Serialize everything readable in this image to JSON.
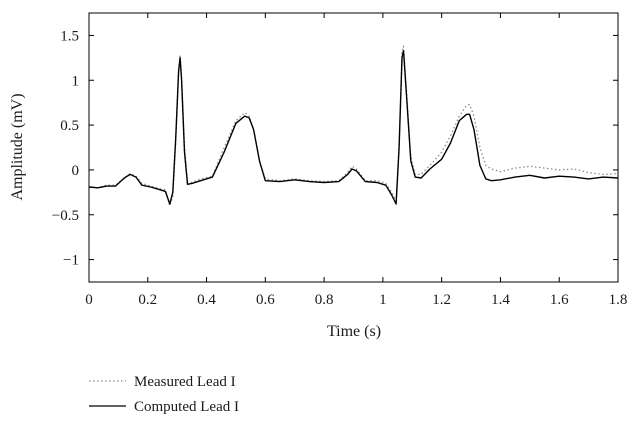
{
  "chart_data": {
    "type": "line",
    "xlabel": "Time (s)",
    "ylabel": "Amplitude (mV)",
    "xlim": [
      0,
      1.8
    ],
    "ylim": [
      -1.25,
      1.75
    ],
    "xticks": [
      0,
      0.2,
      0.4,
      0.6,
      0.8,
      1,
      1.2,
      1.4,
      1.6,
      1.8
    ],
    "xtick_labels": [
      "0",
      "0.2",
      "0.4",
      "0.6",
      "0.8",
      "1",
      "1.2",
      "1.4",
      "1.6",
      "1.8"
    ],
    "yticks": [
      1.5,
      1,
      0.5,
      0,
      -0.5,
      -1
    ],
    "ytick_labels": [
      "1.5",
      "1",
      "0.5",
      "0",
      "−0.5",
      "−1"
    ],
    "grid": false,
    "legend_placement": "bottom-left, below plot",
    "series": [
      {
        "name": "Measured Lead I",
        "style": "dotted",
        "color": "#8c8c8c",
        "x": [
          0,
          0.03,
          0.06,
          0.09,
          0.12,
          0.14,
          0.16,
          0.18,
          0.21,
          0.24,
          0.26,
          0.275,
          0.285,
          0.295,
          0.305,
          0.31,
          0.315,
          0.325,
          0.335,
          0.35,
          0.38,
          0.42,
          0.46,
          0.5,
          0.53,
          0.545,
          0.56,
          0.58,
          0.6,
          0.65,
          0.7,
          0.75,
          0.8,
          0.85,
          0.88,
          0.895,
          0.91,
          0.94,
          0.98,
          1.01,
          1.03,
          1.045,
          1.055,
          1.065,
          1.07,
          1.08,
          1.095,
          1.11,
          1.13,
          1.16,
          1.2,
          1.23,
          1.26,
          1.285,
          1.295,
          1.31,
          1.33,
          1.35,
          1.37,
          1.4,
          1.45,
          1.5,
          1.55,
          1.6,
          1.65,
          1.7,
          1.75,
          1.8
        ],
        "y": [
          -0.19,
          -0.2,
          -0.17,
          -0.17,
          -0.09,
          -0.04,
          -0.07,
          -0.15,
          -0.18,
          -0.21,
          -0.22,
          -0.4,
          -0.3,
          0.3,
          1.1,
          1.28,
          1.05,
          0.25,
          -0.13,
          -0.14,
          -0.1,
          -0.07,
          0.25,
          0.55,
          0.64,
          0.6,
          0.45,
          0.1,
          -0.1,
          -0.12,
          -0.1,
          -0.12,
          -0.13,
          -0.12,
          -0.03,
          0.04,
          0.01,
          -0.12,
          -0.12,
          -0.15,
          -0.25,
          -0.35,
          0.3,
          1.3,
          1.38,
          0.9,
          0.15,
          -0.05,
          -0.05,
          0.05,
          0.2,
          0.38,
          0.6,
          0.72,
          0.73,
          0.6,
          0.25,
          0.05,
          0.01,
          -0.02,
          0.02,
          0.04,
          0.02,
          0.0,
          0.01,
          -0.03,
          -0.05,
          -0.04
        ]
      },
      {
        "name": "Computed Lead I",
        "style": "solid",
        "color": "#000000",
        "x": [
          0,
          0.03,
          0.06,
          0.09,
          0.12,
          0.14,
          0.16,
          0.18,
          0.21,
          0.24,
          0.26,
          0.275,
          0.285,
          0.295,
          0.305,
          0.31,
          0.315,
          0.325,
          0.335,
          0.35,
          0.38,
          0.42,
          0.46,
          0.5,
          0.53,
          0.545,
          0.56,
          0.58,
          0.6,
          0.65,
          0.7,
          0.75,
          0.8,
          0.85,
          0.88,
          0.895,
          0.91,
          0.94,
          0.98,
          1.01,
          1.03,
          1.045,
          1.055,
          1.065,
          1.07,
          1.08,
          1.095,
          1.11,
          1.13,
          1.16,
          1.2,
          1.23,
          1.26,
          1.285,
          1.295,
          1.31,
          1.33,
          1.35,
          1.37,
          1.4,
          1.45,
          1.5,
          1.55,
          1.6,
          1.65,
          1.7,
          1.75,
          1.8
        ],
        "y": [
          -0.19,
          -0.2,
          -0.18,
          -0.18,
          -0.09,
          -0.05,
          -0.08,
          -0.17,
          -0.19,
          -0.22,
          -0.24,
          -0.38,
          -0.25,
          0.35,
          1.1,
          1.25,
          1.0,
          0.2,
          -0.16,
          -0.15,
          -0.12,
          -0.08,
          0.2,
          0.52,
          0.6,
          0.58,
          0.45,
          0.1,
          -0.12,
          -0.13,
          -0.11,
          -0.13,
          -0.14,
          -0.13,
          -0.05,
          0.01,
          -0.01,
          -0.13,
          -0.14,
          -0.17,
          -0.28,
          -0.38,
          0.25,
          1.25,
          1.33,
          0.85,
          0.1,
          -0.08,
          -0.09,
          0.01,
          0.12,
          0.3,
          0.55,
          0.62,
          0.62,
          0.45,
          0.05,
          -0.1,
          -0.12,
          -0.11,
          -0.08,
          -0.06,
          -0.09,
          -0.07,
          -0.08,
          -0.1,
          -0.08,
          -0.09
        ]
      }
    ]
  }
}
